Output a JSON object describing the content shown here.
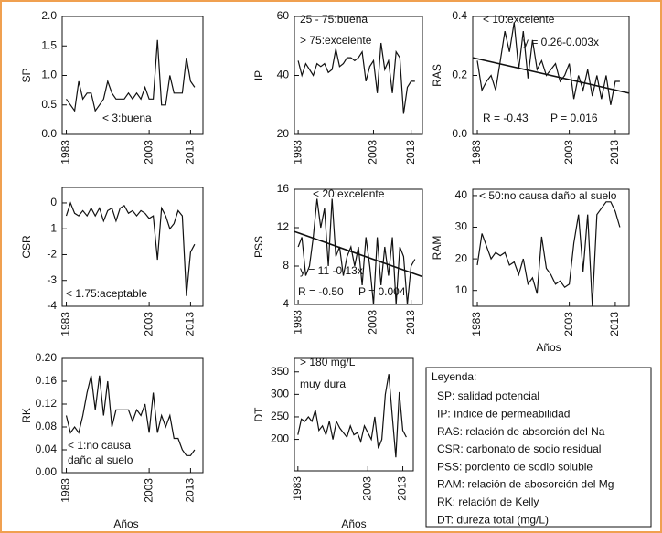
{
  "chart_data": [
    {
      "type": "line",
      "ylabel": "SP",
      "x": [
        1983,
        1984,
        1985,
        1986,
        1987,
        1988,
        1989,
        1990,
        1991,
        1992,
        1993,
        1994,
        1995,
        1996,
        1997,
        1998,
        1999,
        2000,
        2001,
        2002,
        2003,
        2004,
        2005,
        2006,
        2007,
        2008,
        2009,
        2010,
        2011,
        2012,
        2013,
        2014
      ],
      "values": [
        0.6,
        0.5,
        0.4,
        0.9,
        0.6,
        0.7,
        0.7,
        0.4,
        0.5,
        0.6,
        0.9,
        0.7,
        0.6,
        0.6,
        0.6,
        0.7,
        0.6,
        0.7,
        0.6,
        0.8,
        0.6,
        0.6,
        1.6,
        0.5,
        0.5,
        1.0,
        0.7,
        0.7,
        0.7,
        1.3,
        0.9,
        0.8
      ],
      "xlim": [
        1982,
        2016
      ],
      "xticks": [
        1983,
        2003,
        2013
      ],
      "ylim": [
        0,
        2
      ],
      "yticks": [
        {
          "value": 0,
          "label": "0.0"
        },
        0.5,
        {
          "value": 1,
          "label": "1.0"
        },
        1.5,
        {
          "value": 2,
          "label": "2.0"
        }
      ],
      "annotations": [
        "< 3:buena"
      ]
    },
    {
      "type": "line",
      "ylabel": "IP",
      "x": [
        1983,
        1984,
        1985,
        1986,
        1987,
        1988,
        1989,
        1990,
        1991,
        1992,
        1993,
        1994,
        1995,
        1996,
        1997,
        1998,
        1999,
        2000,
        2001,
        2002,
        2003,
        2004,
        2005,
        2006,
        2007,
        2008,
        2009,
        2010,
        2011,
        2012,
        2013,
        2014
      ],
      "values": [
        45,
        40,
        44,
        42,
        40,
        44,
        43,
        44,
        41,
        42,
        49,
        43,
        44,
        46,
        46,
        45,
        46,
        48,
        38,
        43,
        45,
        34,
        51,
        42,
        45,
        34,
        48,
        46,
        27,
        36,
        38,
        38
      ],
      "xlim": [
        1982,
        2016
      ],
      "xticks": [
        1983,
        2003,
        2013
      ],
      "ylim": [
        20,
        60
      ],
      "yticks": [
        20,
        40,
        60
      ],
      "annotations": [
        "25 - 75:buena",
        "> 75:excelente"
      ]
    },
    {
      "type": "line",
      "ylabel": "RAS",
      "x": [
        1983,
        1984,
        1985,
        1986,
        1987,
        1988,
        1989,
        1990,
        1991,
        1992,
        1993,
        1994,
        1995,
        1996,
        1997,
        1998,
        1999,
        2000,
        2001,
        2002,
        2003,
        2004,
        2005,
        2006,
        2007,
        2008,
        2009,
        2010,
        2011,
        2012,
        2013,
        2014
      ],
      "values": [
        0.25,
        0.15,
        0.18,
        0.2,
        0.15,
        0.25,
        0.35,
        0.28,
        0.38,
        0.22,
        0.35,
        0.19,
        0.32,
        0.22,
        0.25,
        0.2,
        0.22,
        0.24,
        0.18,
        0.2,
        0.24,
        0.12,
        0.2,
        0.15,
        0.22,
        0.13,
        0.2,
        0.12,
        0.2,
        0.1,
        0.18,
        0.18
      ],
      "xlim": [
        1982,
        2016
      ],
      "xticks": [
        1983,
        2003,
        2013
      ],
      "ylim": [
        0,
        0.4
      ],
      "yticks": [
        {
          "value": 0,
          "label": "0.0"
        },
        0.2,
        0.4
      ],
      "trend": {
        "x": [
          1982,
          2016
        ],
        "y": [
          0.26,
          0.14
        ]
      },
      "annotations": [
        "< 10:excelente",
        "y = 0.26-0.003x",
        "R = -0.43",
        "P = 0.016"
      ]
    },
    {
      "type": "line",
      "ylabel": "CSR",
      "x": [
        1983,
        1984,
        1985,
        1986,
        1987,
        1988,
        1989,
        1990,
        1991,
        1992,
        1993,
        1994,
        1995,
        1996,
        1997,
        1998,
        1999,
        2000,
        2001,
        2002,
        2003,
        2004,
        2005,
        2006,
        2007,
        2008,
        2009,
        2010,
        2011,
        2012,
        2013,
        2014
      ],
      "values": [
        -0.5,
        0,
        -0.4,
        -0.5,
        -0.3,
        -0.5,
        -0.2,
        -0.5,
        -0.2,
        -0.7,
        -0.3,
        -0.2,
        -0.7,
        -0.2,
        -0.1,
        -0.4,
        -0.3,
        -0.5,
        -0.3,
        -0.4,
        -0.6,
        -0.5,
        -2.2,
        -0.2,
        -0.5,
        -1,
        -0.8,
        -0.3,
        -0.5,
        -3.6,
        -1.9,
        -1.6
      ],
      "xlim": [
        1982,
        2016
      ],
      "xticks": [
        1983,
        2003,
        2013
      ],
      "ylim": [
        -4,
        0.6
      ],
      "yticks": [
        0,
        -1,
        -2,
        -3,
        -4
      ],
      "annotations": [
        "< 1.75:aceptable"
      ]
    },
    {
      "type": "line",
      "ylabel": "PSS",
      "x": [
        1983,
        1984,
        1985,
        1986,
        1987,
        1988,
        1989,
        1990,
        1991,
        1992,
        1993,
        1994,
        1995,
        1996,
        1997,
        1998,
        1999,
        2000,
        2001,
        2002,
        2003,
        2004,
        2005,
        2006,
        2007,
        2008,
        2009,
        2010,
        2011,
        2012,
        2013,
        2014
      ],
      "values": [
        10,
        11,
        7,
        8,
        11,
        15,
        12,
        14,
        8,
        15,
        9,
        10,
        7,
        9,
        10,
        8,
        10,
        6,
        11,
        8,
        4,
        11,
        6,
        10,
        7,
        11,
        4,
        10,
        9,
        4,
        8,
        8.7
      ],
      "xlim": [
        1982,
        2016
      ],
      "xticks": [
        1983,
        2003,
        2013
      ],
      "ylim": [
        4,
        16
      ],
      "yticks": [
        4,
        8,
        12,
        16
      ],
      "trend": {
        "x": [
          1982,
          2016
        ],
        "y": [
          11.6,
          6.9
        ]
      },
      "annotations": [
        "< 20:excelente",
        "y = 11 -0.13x",
        "R = -0.50",
        "P = 0.004"
      ]
    },
    {
      "type": "line",
      "ylabel": "RAM",
      "xlabel": "Años",
      "x": [
        1983,
        1984,
        1985,
        1986,
        1987,
        1988,
        1989,
        1990,
        1991,
        1992,
        1993,
        1994,
        1995,
        1996,
        1997,
        1998,
        1999,
        2000,
        2001,
        2002,
        2003,
        2004,
        2005,
        2006,
        2007,
        2008,
        2009,
        2010,
        2011,
        2012,
        2013,
        2014
      ],
      "values": [
        18,
        28,
        24,
        20,
        22,
        21,
        22,
        18,
        19,
        15,
        20,
        12,
        14,
        9,
        27,
        17,
        15,
        12,
        13,
        11,
        12,
        25,
        34,
        16,
        34,
        5,
        34,
        36,
        38,
        38,
        35,
        30
      ],
      "xlim": [
        1982,
        2016
      ],
      "xticks": [
        1983,
        2003,
        2013
      ],
      "ylim": [
        5,
        42
      ],
      "yticks": [
        10,
        20,
        30,
        40
      ],
      "annotations": [
        "< 50:no causa daño al suelo"
      ]
    },
    {
      "type": "line",
      "ylabel": "RK",
      "xlabel": "Años",
      "x": [
        1983,
        1984,
        1985,
        1986,
        1987,
        1988,
        1989,
        1990,
        1991,
        1992,
        1993,
        1994,
        1995,
        1996,
        1997,
        1998,
        1999,
        2000,
        2001,
        2002,
        2003,
        2004,
        2005,
        2006,
        2007,
        2008,
        2009,
        2010,
        2011,
        2012,
        2013,
        2014
      ],
      "values": [
        0.1,
        0.07,
        0.08,
        0.07,
        0.1,
        0.14,
        0.17,
        0.11,
        0.17,
        0.1,
        0.16,
        0.08,
        0.11,
        0.11,
        0.11,
        0.11,
        0.09,
        0.11,
        0.1,
        0.12,
        0.07,
        0.14,
        0.07,
        0.1,
        0.08,
        0.1,
        0.06,
        0.06,
        0.04,
        0.03,
        0.03,
        0.04
      ],
      "xlim": [
        1982,
        2016
      ],
      "xticks": [
        1983,
        2003,
        2013
      ],
      "ylim": [
        0,
        0.2
      ],
      "yticks": [
        {
          "value": 0,
          "label": "0.00"
        },
        {
          "value": 0.04,
          "label": "0.04"
        },
        {
          "value": 0.08,
          "label": "0.08"
        },
        {
          "value": 0.12,
          "label": "0.12"
        },
        {
          "value": 0.16,
          "label": "0.16"
        },
        {
          "value": 0.2,
          "label": "0.20"
        }
      ],
      "annotations": [
        "< 1:no causa",
        "daño al suelo"
      ]
    },
    {
      "type": "line",
      "ylabel": "DT",
      "xlabel": "Años",
      "x": [
        1983,
        1984,
        1985,
        1986,
        1987,
        1988,
        1989,
        1990,
        1991,
        1992,
        1993,
        1994,
        1995,
        1996,
        1997,
        1998,
        1999,
        2000,
        2001,
        2002,
        2003,
        2004,
        2005,
        2006,
        2007,
        2008,
        2009,
        2010,
        2011,
        2012,
        2013,
        2014
      ],
      "values": [
        210,
        245,
        240,
        250,
        240,
        265,
        220,
        230,
        210,
        240,
        200,
        240,
        225,
        215,
        205,
        230,
        210,
        215,
        195,
        230,
        215,
        200,
        250,
        180,
        200,
        300,
        345,
        250,
        160,
        305,
        220,
        205
      ],
      "xlim": [
        1982,
        2016
      ],
      "xticks": [
        1983,
        2003,
        2013
      ],
      "ylim": [
        130,
        380
      ],
      "yticks": [
        200,
        250,
        300,
        350
      ],
      "annotations": [
        "> 180 mg/L",
        "muy dura"
      ]
    }
  ],
  "legend": {
    "title": "Leyenda:",
    "items": [
      "SP: salidad potencial",
      "IP: índice de permeabilidad",
      "RAS: relación de absorción del Na",
      "CSR: carbonato de sodio residual",
      "PSS: porciento de sodio soluble",
      "RAM: relación de abosorción del Mg",
      "RK: relación de Kelly",
      "DT: dureza total (mg/L)"
    ]
  }
}
